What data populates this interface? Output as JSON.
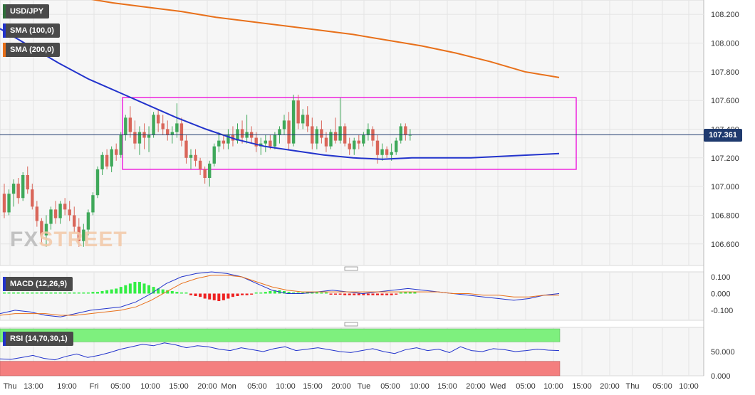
{
  "chart_data": [
    {
      "type": "candlestick",
      "symbol": "USD/JPY",
      "indicators": [
        {
          "name": "SMA (100,0)",
          "color": "#2233cc"
        },
        {
          "name": "SMA (200,0)",
          "color": "#e8701a"
        }
      ],
      "last_price_label": "107.361",
      "last_price": 107.361,
      "ylim": [
        106.45,
        108.3
      ],
      "y_ticks": [
        "108.200",
        "108.000",
        "107.800",
        "107.600",
        "107.400",
        "107.200",
        "107.000",
        "106.800",
        "106.600"
      ],
      "y_tick_values": [
        108.2,
        108.0,
        107.8,
        107.6,
        107.4,
        107.2,
        107.0,
        106.8,
        106.6
      ],
      "range_box": {
        "low": 107.12,
        "high": 107.62,
        "color": "#ee22dd"
      },
      "candles": [
        {
          "o": 106.95,
          "h": 107.02,
          "l": 106.78,
          "c": 106.82
        },
        {
          "o": 106.82,
          "h": 106.98,
          "l": 106.8,
          "c": 106.95
        },
        {
          "o": 106.95,
          "h": 107.05,
          "l": 106.86,
          "c": 107.02
        },
        {
          "o": 107.02,
          "h": 107.06,
          "l": 106.88,
          "c": 106.92
        },
        {
          "o": 106.92,
          "h": 107.1,
          "l": 106.9,
          "c": 107.08
        },
        {
          "o": 107.08,
          "h": 107.14,
          "l": 106.95,
          "c": 106.98
        },
        {
          "o": 106.98,
          "h": 107.02,
          "l": 106.84,
          "c": 106.86
        },
        {
          "o": 106.86,
          "h": 106.9,
          "l": 106.72,
          "c": 106.76
        },
        {
          "o": 106.76,
          "h": 106.78,
          "l": 106.6,
          "c": 106.66
        },
        {
          "o": 106.66,
          "h": 106.8,
          "l": 106.58,
          "c": 106.74
        },
        {
          "o": 106.74,
          "h": 106.86,
          "l": 106.7,
          "c": 106.84
        },
        {
          "o": 106.84,
          "h": 106.9,
          "l": 106.74,
          "c": 106.78
        },
        {
          "o": 106.78,
          "h": 106.9,
          "l": 106.74,
          "c": 106.88
        },
        {
          "o": 106.88,
          "h": 106.92,
          "l": 106.8,
          "c": 106.84
        },
        {
          "o": 106.84,
          "h": 106.9,
          "l": 106.76,
          "c": 106.8
        },
        {
          "o": 106.8,
          "h": 106.86,
          "l": 106.68,
          "c": 106.72
        },
        {
          "o": 106.72,
          "h": 106.78,
          "l": 106.58,
          "c": 106.62
        },
        {
          "o": 106.62,
          "h": 106.74,
          "l": 106.58,
          "c": 106.7
        },
        {
          "o": 106.7,
          "h": 106.84,
          "l": 106.66,
          "c": 106.82
        },
        {
          "o": 106.82,
          "h": 106.96,
          "l": 106.8,
          "c": 106.94
        },
        {
          "o": 106.94,
          "h": 107.14,
          "l": 106.92,
          "c": 107.12
        },
        {
          "o": 107.12,
          "h": 107.24,
          "l": 107.08,
          "c": 107.22
        },
        {
          "o": 107.22,
          "h": 107.26,
          "l": 107.12,
          "c": 107.14
        },
        {
          "o": 107.14,
          "h": 107.28,
          "l": 107.1,
          "c": 107.26
        },
        {
          "o": 107.26,
          "h": 107.3,
          "l": 107.18,
          "c": 107.22
        },
        {
          "o": 107.22,
          "h": 107.38,
          "l": 107.2,
          "c": 107.36
        },
        {
          "o": 107.36,
          "h": 107.5,
          "l": 107.32,
          "c": 107.48
        },
        {
          "o": 107.48,
          "h": 107.56,
          "l": 107.34,
          "c": 107.38
        },
        {
          "o": 107.38,
          "h": 107.46,
          "l": 107.26,
          "c": 107.3
        },
        {
          "o": 107.3,
          "h": 107.42,
          "l": 107.22,
          "c": 107.38
        },
        {
          "o": 107.38,
          "h": 107.44,
          "l": 107.26,
          "c": 107.34
        },
        {
          "o": 107.34,
          "h": 107.42,
          "l": 107.24,
          "c": 107.36
        },
        {
          "o": 107.36,
          "h": 107.52,
          "l": 107.34,
          "c": 107.5
        },
        {
          "o": 107.5,
          "h": 107.54,
          "l": 107.38,
          "c": 107.44
        },
        {
          "o": 107.44,
          "h": 107.5,
          "l": 107.36,
          "c": 107.4
        },
        {
          "o": 107.4,
          "h": 107.46,
          "l": 107.32,
          "c": 107.36
        },
        {
          "o": 107.36,
          "h": 107.42,
          "l": 107.3,
          "c": 107.38
        },
        {
          "o": 107.38,
          "h": 107.58,
          "l": 107.34,
          "c": 107.44
        },
        {
          "o": 107.44,
          "h": 107.48,
          "l": 107.28,
          "c": 107.32
        },
        {
          "o": 107.32,
          "h": 107.36,
          "l": 107.16,
          "c": 107.2
        },
        {
          "o": 107.2,
          "h": 107.26,
          "l": 107.12,
          "c": 107.22
        },
        {
          "o": 107.22,
          "h": 107.26,
          "l": 107.14,
          "c": 107.18
        },
        {
          "o": 107.18,
          "h": 107.2,
          "l": 107.08,
          "c": 107.12
        },
        {
          "o": 107.12,
          "h": 107.14,
          "l": 107.02,
          "c": 107.06
        },
        {
          "o": 107.06,
          "h": 107.18,
          "l": 107.0,
          "c": 107.16
        },
        {
          "o": 107.16,
          "h": 107.3,
          "l": 107.14,
          "c": 107.28
        },
        {
          "o": 107.28,
          "h": 107.38,
          "l": 107.24,
          "c": 107.32
        },
        {
          "o": 107.32,
          "h": 107.36,
          "l": 107.26,
          "c": 107.3
        },
        {
          "o": 107.3,
          "h": 107.4,
          "l": 107.26,
          "c": 107.36
        },
        {
          "o": 107.36,
          "h": 107.42,
          "l": 107.28,
          "c": 107.32
        },
        {
          "o": 107.32,
          "h": 107.44,
          "l": 107.3,
          "c": 107.4
        },
        {
          "o": 107.4,
          "h": 107.46,
          "l": 107.3,
          "c": 107.34
        },
        {
          "o": 107.34,
          "h": 107.5,
          "l": 107.3,
          "c": 107.38
        },
        {
          "o": 107.38,
          "h": 107.42,
          "l": 107.3,
          "c": 107.34
        },
        {
          "o": 107.34,
          "h": 107.38,
          "l": 107.24,
          "c": 107.28
        },
        {
          "o": 107.28,
          "h": 107.34,
          "l": 107.22,
          "c": 107.3
        },
        {
          "o": 107.3,
          "h": 107.36,
          "l": 107.24,
          "c": 107.32
        },
        {
          "o": 107.32,
          "h": 107.36,
          "l": 107.26,
          "c": 107.28
        },
        {
          "o": 107.28,
          "h": 107.38,
          "l": 107.26,
          "c": 107.36
        },
        {
          "o": 107.36,
          "h": 107.42,
          "l": 107.3,
          "c": 107.4
        },
        {
          "o": 107.4,
          "h": 107.5,
          "l": 107.36,
          "c": 107.46
        },
        {
          "o": 107.46,
          "h": 107.52,
          "l": 107.26,
          "c": 107.3
        },
        {
          "o": 107.3,
          "h": 107.64,
          "l": 107.28,
          "c": 107.6
        },
        {
          "o": 107.6,
          "h": 107.64,
          "l": 107.4,
          "c": 107.44
        },
        {
          "o": 107.44,
          "h": 107.54,
          "l": 107.4,
          "c": 107.5
        },
        {
          "o": 107.5,
          "h": 107.56,
          "l": 107.38,
          "c": 107.42
        },
        {
          "o": 107.42,
          "h": 107.48,
          "l": 107.26,
          "c": 107.3
        },
        {
          "o": 107.3,
          "h": 107.42,
          "l": 107.26,
          "c": 107.4
        },
        {
          "o": 107.4,
          "h": 107.46,
          "l": 107.3,
          "c": 107.34
        },
        {
          "o": 107.34,
          "h": 107.38,
          "l": 107.24,
          "c": 107.28
        },
        {
          "o": 107.28,
          "h": 107.4,
          "l": 107.26,
          "c": 107.38
        },
        {
          "o": 107.38,
          "h": 107.48,
          "l": 107.3,
          "c": 107.32
        },
        {
          "o": 107.32,
          "h": 107.62,
          "l": 107.3,
          "c": 107.42
        },
        {
          "o": 107.42,
          "h": 107.44,
          "l": 107.28,
          "c": 107.3
        },
        {
          "o": 107.3,
          "h": 107.34,
          "l": 107.22,
          "c": 107.26
        },
        {
          "o": 107.26,
          "h": 107.34,
          "l": 107.22,
          "c": 107.32
        },
        {
          "o": 107.32,
          "h": 107.36,
          "l": 107.26,
          "c": 107.3
        },
        {
          "o": 107.3,
          "h": 107.38,
          "l": 107.28,
          "c": 107.36
        },
        {
          "o": 107.36,
          "h": 107.44,
          "l": 107.32,
          "c": 107.4
        },
        {
          "o": 107.4,
          "h": 107.42,
          "l": 107.28,
          "c": 107.32
        },
        {
          "o": 107.32,
          "h": 107.36,
          "l": 107.16,
          "c": 107.22
        },
        {
          "o": 107.22,
          "h": 107.3,
          "l": 107.18,
          "c": 107.26
        },
        {
          "o": 107.26,
          "h": 107.28,
          "l": 107.2,
          "c": 107.22
        },
        {
          "o": 107.22,
          "h": 107.3,
          "l": 107.18,
          "c": 107.24
        },
        {
          "o": 107.24,
          "h": 107.34,
          "l": 107.22,
          "c": 107.32
        },
        {
          "o": 107.32,
          "h": 107.44,
          "l": 107.3,
          "c": 107.42
        },
        {
          "o": 107.42,
          "h": 107.44,
          "l": 107.32,
          "c": 107.36
        },
        {
          "o": 107.36,
          "h": 107.4,
          "l": 107.32,
          "c": 107.36
        }
      ],
      "sma100": [
        108.1,
        107.98,
        107.86,
        107.75,
        107.66,
        107.57,
        107.48,
        107.4,
        107.33,
        107.28,
        107.25,
        107.22,
        107.2,
        107.19,
        107.2,
        107.2,
        107.2,
        107.21,
        107.22,
        107.23
      ],
      "sma200": [
        108.32,
        108.28,
        108.25,
        108.22,
        108.18,
        108.15,
        108.12,
        108.09,
        108.06,
        108.02,
        107.98,
        107.93,
        107.87,
        107.8,
        107.76
      ],
      "x_ticks": [
        "Thu",
        "13:00",
        "19:00",
        "Fri",
        "05:00",
        "10:00",
        "15:00",
        "20:00",
        "Mon",
        "05:00",
        "10:00",
        "15:00",
        "20:00",
        "Tue",
        "05:00",
        "10:00",
        "15:00",
        "20:00",
        "Wed",
        "05:00",
        "10:00",
        "15:00",
        "20:00",
        "Thu",
        "05:00",
        "10:00"
      ]
    },
    {
      "type": "macd",
      "label": "MACD (12,26,9)",
      "ylim": [
        -0.16,
        0.13
      ],
      "y_ticks": [
        "0.100",
        "0.000",
        "-0.100"
      ],
      "y_tick_values": [
        0.1,
        0.0,
        -0.1
      ],
      "histogram": [
        0.0,
        0.0,
        0.0,
        0.0,
        0.0,
        0.0,
        0.0,
        0.0,
        0.0,
        0.0,
        0.0,
        0.0,
        0.0,
        0.0,
        0.0,
        0.0,
        0.0,
        0.0,
        0.0,
        0.01,
        0.01,
        0.015,
        0.02,
        0.025,
        0.03,
        0.04,
        0.05,
        0.06,
        0.07,
        0.07,
        0.06,
        0.05,
        0.04,
        0.03,
        0.025,
        0.02,
        0.015,
        0.01,
        0.005,
        0.0,
        -0.01,
        -0.015,
        -0.02,
        -0.03,
        -0.035,
        -0.04,
        -0.045,
        -0.04,
        -0.03,
        -0.02,
        -0.015,
        -0.01,
        -0.01,
        -0.005,
        0.0,
        0.005,
        0.01,
        0.015,
        0.02,
        0.02,
        0.015,
        0.01,
        0.005,
        0.0,
        0.005,
        0.01,
        0.01,
        0.01,
        0.005,
        0.0,
        -0.005,
        -0.005,
        -0.005,
        -0.01,
        -0.01,
        -0.01,
        -0.01,
        -0.01,
        -0.01,
        -0.01,
        -0.01,
        -0.01,
        -0.01,
        -0.01,
        -0.005,
        0.0,
        0.01,
        0.01,
        0.01
      ],
      "macd_line": [
        -0.12,
        -0.1,
        -0.11,
        -0.13,
        -0.14,
        -0.12,
        -0.1,
        -0.09,
        -0.08,
        -0.05,
        0.0,
        0.06,
        0.1,
        0.12,
        0.13,
        0.12,
        0.1,
        0.06,
        0.02,
        0.0,
        0.0,
        0.01,
        0.02,
        0.01,
        0.0,
        0.01,
        0.02,
        0.03,
        0.02,
        0.01,
        0.0,
        -0.01,
        -0.02,
        -0.03,
        -0.04,
        -0.03,
        -0.01,
        0.0
      ],
      "signal_line": [
        -0.13,
        -0.12,
        -0.12,
        -0.12,
        -0.13,
        -0.13,
        -0.12,
        -0.11,
        -0.1,
        -0.08,
        -0.04,
        0.01,
        0.06,
        0.09,
        0.11,
        0.11,
        0.1,
        0.07,
        0.04,
        0.02,
        0.01,
        0.01,
        0.01,
        0.01,
        0.01,
        0.01,
        0.01,
        0.01,
        0.01,
        0.01,
        0.0,
        0.0,
        -0.01,
        -0.01,
        -0.02,
        -0.02,
        -0.01,
        -0.01
      ]
    },
    {
      "type": "rsi",
      "label": "RSI (14,70,30,1)",
      "ylim": [
        0,
        100
      ],
      "y_ticks": [
        "50.000",
        "0.000"
      ],
      "y_tick_values": [
        50,
        0
      ],
      "overbought": 70,
      "oversold": 30,
      "rsi_line": [
        35,
        34,
        38,
        42,
        36,
        33,
        40,
        45,
        38,
        42,
        48,
        55,
        60,
        65,
        62,
        68,
        64,
        58,
        62,
        60,
        55,
        52,
        58,
        54,
        50,
        56,
        60,
        52,
        55,
        58,
        54,
        50,
        48,
        52,
        56,
        50,
        46,
        54,
        58,
        52,
        55,
        48,
        60,
        52,
        50,
        56,
        54,
        50,
        52,
        55,
        53,
        52
      ]
    }
  ]
}
